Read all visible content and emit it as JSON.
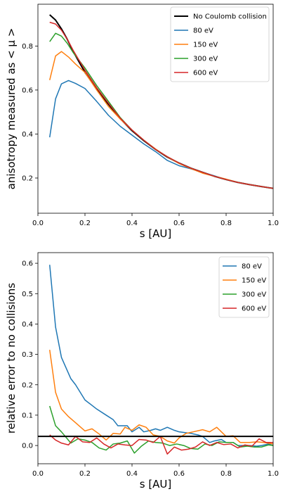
{
  "chart_data": [
    {
      "type": "line",
      "xlabel": "s [AU]",
      "ylabel": "anisotropy measured as < μ >",
      "xlim": [
        0,
        1.0
      ],
      "ylim": [
        0.04,
        0.99
      ],
      "x_ticks": [
        "0.0",
        "0.2",
        "0.4",
        "0.6",
        "0.8",
        "1.0"
      ],
      "y_ticks": [
        "0.2",
        "0.4",
        "0.6",
        "0.8"
      ],
      "legend_position": "top-right",
      "series": [
        {
          "name": "No Coulomb collision",
          "color": "#000000",
          "width": 2,
          "x": [
            0.05,
            0.075,
            0.1,
            0.125,
            0.15,
            0.2,
            0.25,
            0.3,
            0.35,
            0.4,
            0.45,
            0.5,
            0.55,
            0.6,
            0.65,
            0.7,
            0.75,
            0.8,
            0.85,
            0.9,
            0.95,
            1.0
          ],
          "y": [
            0.942,
            0.918,
            0.878,
            0.83,
            0.775,
            0.68,
            0.605,
            0.535,
            0.47,
            0.415,
            0.37,
            0.33,
            0.295,
            0.268,
            0.245,
            0.226,
            0.208,
            0.193,
            0.18,
            0.17,
            0.161,
            0.153
          ]
        },
        {
          "name": "80 eV",
          "color": "#1f77b4",
          "width": 1.5,
          "x": [
            0.05,
            0.075,
            0.1,
            0.13,
            0.16,
            0.2,
            0.25,
            0.3,
            0.35,
            0.4,
            0.45,
            0.5,
            0.55,
            0.6,
            0.65,
            0.7,
            0.75,
            0.8,
            0.85,
            0.9,
            0.95,
            1.0
          ],
          "y": [
            0.385,
            0.56,
            0.628,
            0.643,
            0.63,
            0.607,
            0.548,
            0.485,
            0.435,
            0.395,
            0.355,
            0.32,
            0.28,
            0.256,
            0.242,
            0.226,
            0.21,
            0.193,
            0.18,
            0.17,
            0.161,
            0.153
          ]
        },
        {
          "name": "150 eV",
          "color": "#ff7f0e",
          "width": 1.5,
          "x": [
            0.05,
            0.075,
            0.1,
            0.13,
            0.16,
            0.2,
            0.25,
            0.3,
            0.35,
            0.4,
            0.45,
            0.5,
            0.55,
            0.6,
            0.65,
            0.7,
            0.75,
            0.8,
            0.85,
            0.9,
            0.95,
            1.0
          ],
          "y": [
            0.645,
            0.755,
            0.775,
            0.75,
            0.718,
            0.68,
            0.6,
            0.525,
            0.468,
            0.418,
            0.372,
            0.332,
            0.296,
            0.266,
            0.243,
            0.222,
            0.208,
            0.195,
            0.18,
            0.17,
            0.161,
            0.153
          ]
        },
        {
          "name": "300 eV",
          "color": "#2ca02c",
          "width": 1.5,
          "x": [
            0.05,
            0.075,
            0.1,
            0.125,
            0.15,
            0.2,
            0.25,
            0.3,
            0.35,
            0.4,
            0.45,
            0.5,
            0.55,
            0.6,
            0.65,
            0.7,
            0.75,
            0.8,
            0.85,
            0.9,
            0.95,
            1.0
          ],
          "y": [
            0.82,
            0.858,
            0.845,
            0.812,
            0.77,
            0.7,
            0.62,
            0.548,
            0.475,
            0.418,
            0.372,
            0.33,
            0.297,
            0.268,
            0.245,
            0.226,
            0.208,
            0.193,
            0.18,
            0.17,
            0.161,
            0.153
          ]
        },
        {
          "name": "600 eV",
          "color": "#d62728",
          "width": 1.5,
          "x": [
            0.05,
            0.075,
            0.1,
            0.125,
            0.15,
            0.2,
            0.25,
            0.3,
            0.35,
            0.4,
            0.45,
            0.5,
            0.55,
            0.6,
            0.65,
            0.7,
            0.75,
            0.8,
            0.85,
            0.9,
            0.95,
            1.0
          ],
          "y": [
            0.908,
            0.9,
            0.872,
            0.83,
            0.78,
            0.69,
            0.61,
            0.54,
            0.472,
            0.418,
            0.372,
            0.33,
            0.297,
            0.268,
            0.245,
            0.226,
            0.208,
            0.193,
            0.18,
            0.17,
            0.161,
            0.153
          ]
        }
      ]
    },
    {
      "type": "line",
      "xlabel": "s [AU]",
      "ylabel": "relative error to no collisions",
      "xlim": [
        0,
        1.0
      ],
      "ylim": [
        -0.06,
        0.635
      ],
      "x_ticks": [
        "0.0",
        "0.2",
        "0.4",
        "0.6",
        "0.8",
        "1.0"
      ],
      "y_ticks": [
        "0.0",
        "0.1",
        "0.2",
        "0.3",
        "0.4",
        "0.5",
        "0.6"
      ],
      "legend_position": "top-right",
      "hline": {
        "y": 0.03,
        "color": "#000000",
        "width": 2
      },
      "series": [
        {
          "name": "80 eV",
          "color": "#1f77b4",
          "width": 1.5,
          "x": [
            0.05,
            0.075,
            0.1,
            0.14,
            0.16,
            0.2,
            0.25,
            0.29,
            0.32,
            0.34,
            0.36,
            0.38,
            0.4,
            0.43,
            0.45,
            0.48,
            0.5,
            0.52,
            0.55,
            0.58,
            0.6,
            0.65,
            0.68,
            0.7,
            0.73,
            0.75,
            0.78,
            0.8,
            0.83,
            0.85,
            0.88,
            0.9,
            0.93,
            0.95,
            0.98,
            1.0
          ],
          "y": [
            0.595,
            0.39,
            0.29,
            0.22,
            0.2,
            0.15,
            0.12,
            0.1,
            0.085,
            0.065,
            0.065,
            0.065,
            0.045,
            0.06,
            0.045,
            0.05,
            0.055,
            0.05,
            0.06,
            0.05,
            0.045,
            0.04,
            0.035,
            0.03,
            0.01,
            0.015,
            0.02,
            0.01,
            0.01,
            0.0,
            0.0,
            0.0,
            -0.002,
            0.0,
            0.005,
            0.0
          ]
        },
        {
          "name": "150 eV",
          "color": "#ff7f0e",
          "width": 1.5,
          "x": [
            0.05,
            0.075,
            0.1,
            0.13,
            0.16,
            0.2,
            0.23,
            0.26,
            0.29,
            0.32,
            0.35,
            0.37,
            0.4,
            0.43,
            0.46,
            0.49,
            0.52,
            0.55,
            0.58,
            0.6,
            0.63,
            0.66,
            0.7,
            0.73,
            0.76,
            0.8,
            0.83,
            0.86,
            0.9,
            0.93,
            0.96,
            1.0
          ],
          "y": [
            0.315,
            0.175,
            0.12,
            0.095,
            0.075,
            0.048,
            0.055,
            0.038,
            0.018,
            0.04,
            0.038,
            0.06,
            0.05,
            0.068,
            0.06,
            0.035,
            0.03,
            0.015,
            0.008,
            0.025,
            0.04,
            0.045,
            0.052,
            0.045,
            0.06,
            0.03,
            0.032,
            0.01,
            0.01,
            0.012,
            0.01,
            0.005
          ]
        },
        {
          "name": "300 eV",
          "color": "#2ca02c",
          "width": 1.5,
          "x": [
            0.05,
            0.075,
            0.1,
            0.14,
            0.17,
            0.2,
            0.23,
            0.26,
            0.29,
            0.32,
            0.35,
            0.38,
            0.41,
            0.44,
            0.47,
            0.5,
            0.53,
            0.56,
            0.59,
            0.62,
            0.65,
            0.68,
            0.71,
            0.74,
            0.77,
            0.8,
            0.83,
            0.86,
            0.89,
            0.92,
            0.95,
            0.98,
            1.0
          ],
          "y": [
            0.13,
            0.065,
            0.045,
            0.008,
            0.022,
            0.018,
            0.01,
            -0.008,
            -0.015,
            0.005,
            0.008,
            0.015,
            -0.025,
            -0.002,
            0.015,
            0.01,
            0.008,
            0.0,
            0.005,
            0.0,
            -0.01,
            -0.012,
            0.005,
            0.0,
            0.012,
            0.01,
            0.01,
            -0.005,
            -0.002,
            -0.005,
            -0.005,
            0.002,
            0.0
          ]
        },
        {
          "name": "600 eV",
          "color": "#d62728",
          "width": 1.5,
          "x": [
            0.05,
            0.075,
            0.1,
            0.13,
            0.16,
            0.19,
            0.22,
            0.25,
            0.28,
            0.31,
            0.34,
            0.37,
            0.4,
            0.43,
            0.46,
            0.49,
            0.52,
            0.55,
            0.58,
            0.61,
            0.64,
            0.67,
            0.7,
            0.73,
            0.76,
            0.79,
            0.82,
            0.85,
            0.88,
            0.91,
            0.94,
            0.97,
            1.0
          ],
          "y": [
            0.035,
            0.018,
            0.008,
            0.002,
            0.03,
            0.012,
            0.01,
            0.025,
            0.005,
            -0.008,
            0.005,
            0.002,
            0.0,
            0.02,
            0.018,
            0.01,
            0.03,
            -0.028,
            -0.005,
            -0.015,
            -0.012,
            -0.005,
            0.012,
            0.0,
            0.01,
            0.003,
            0.005,
            -0.008,
            0.002,
            -0.002,
            0.022,
            0.01,
            0.01
          ]
        }
      ]
    }
  ]
}
